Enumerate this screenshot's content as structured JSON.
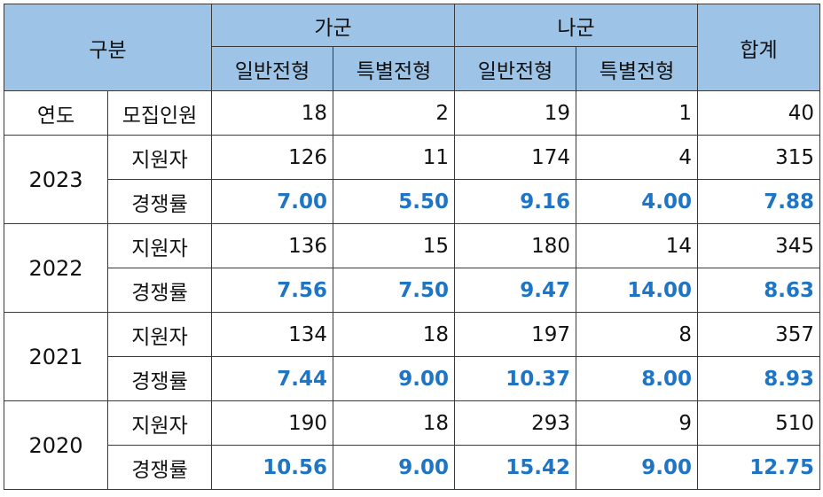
{
  "header": {
    "category": "구분",
    "group_ga": "가군",
    "group_na": "나군",
    "total": "합계",
    "sub_ga_general": "일반전형",
    "sub_ga_special": "특별전형",
    "sub_na_general": "일반전형",
    "sub_na_special": "특별전형"
  },
  "quota": {
    "label_a": "연도",
    "label_b": "모집인원",
    "values": [
      "18",
      "2",
      "19",
      "1",
      "40"
    ]
  },
  "years": [
    {
      "year": "2023",
      "applicants_label": "지원자",
      "applicants": [
        "126",
        "11",
        "174",
        "4",
        "315"
      ],
      "rate_label": "경쟁률",
      "rates": [
        "7.00",
        "5.50",
        "9.16",
        "4.00",
        "7.88"
      ]
    },
    {
      "year": "2022",
      "applicants_label": "지원자",
      "applicants": [
        "136",
        "15",
        "180",
        "14",
        "345"
      ],
      "rate_label": "경쟁률",
      "rates": [
        "7.56",
        "7.50",
        "9.47",
        "14.00",
        "8.63"
      ]
    },
    {
      "year": "2021",
      "applicants_label": "지원자",
      "applicants": [
        "134",
        "18",
        "197",
        "8",
        "357"
      ],
      "rate_label": "경쟁률",
      "rates": [
        "7.44",
        "9.00",
        "10.37",
        "8.00",
        "8.93"
      ]
    },
    {
      "year": "2020",
      "applicants_label": "지원자",
      "applicants": [
        "190",
        "18",
        "293",
        "9",
        "510"
      ],
      "rate_label": "경쟁률",
      "rates": [
        "10.56",
        "9.00",
        "15.42",
        "9.00",
        "12.75"
      ]
    }
  ],
  "colors": {
    "header_bg": "#9dc3e6",
    "rate_text": "#1f74c4"
  }
}
